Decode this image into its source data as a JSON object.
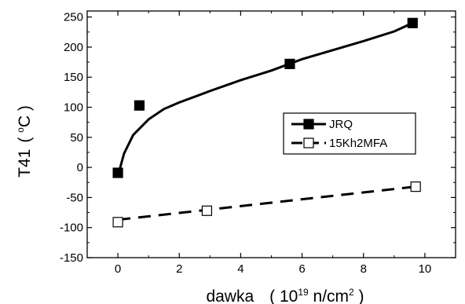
{
  "chart_data": {
    "type": "scatter",
    "xlabel": "dawka",
    "xlabel_unit_pre": "( 10",
    "xlabel_unit_sup": "19",
    "xlabel_unit_post": " n/cm",
    "xlabel_unit_sup2": "2",
    "xlabel_unit_close": " )",
    "ylabel": "T41",
    "ylabel_unit_pre": "( ",
    "ylabel_unit_sup": "o",
    "ylabel_unit_post": "C )",
    "xlim": [
      -1,
      11
    ],
    "ylim": [
      -150,
      260
    ],
    "xticks": [
      0,
      2,
      4,
      6,
      8,
      10
    ],
    "yticks": [
      -150,
      -100,
      -50,
      0,
      50,
      100,
      150,
      200,
      250
    ],
    "grid": false,
    "legend_position": "right",
    "series": [
      {
        "name": "JRQ",
        "marker": "filled-square",
        "line": "solid",
        "color": "#000000",
        "points": [
          {
            "x": 0,
            "y": -9
          },
          {
            "x": 0.7,
            "y": 103
          },
          {
            "x": 5.6,
            "y": 172
          },
          {
            "x": 9.6,
            "y": 240
          }
        ],
        "fit": [
          [
            0.05,
            -5
          ],
          [
            0.2,
            23
          ],
          [
            0.5,
            54
          ],
          [
            1,
            80
          ],
          [
            1.5,
            97
          ],
          [
            2,
            108
          ],
          [
            3,
            127
          ],
          [
            4,
            145
          ],
          [
            5,
            161
          ],
          [
            6,
            180
          ],
          [
            7,
            195
          ],
          [
            8,
            210
          ],
          [
            9,
            226
          ],
          [
            9.6,
            240
          ]
        ]
      },
      {
        "name": "15Kh2MFA",
        "marker": "open-square",
        "line": "dashed",
        "color": "#000000",
        "points": [
          {
            "x": 0,
            "y": -91
          },
          {
            "x": 2.9,
            "y": -72
          },
          {
            "x": 9.7,
            "y": -32
          }
        ],
        "fit": [
          [
            0,
            -87
          ],
          [
            9.7,
            -32
          ]
        ]
      }
    ]
  }
}
